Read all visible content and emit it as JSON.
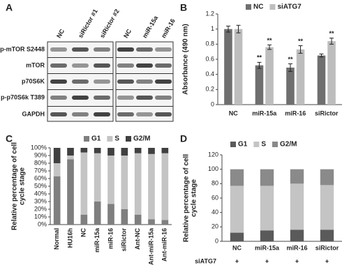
{
  "blot": {
    "panel": "A",
    "lanes": [
      "NC",
      "siRictor #1",
      "siRictor #2",
      "NC",
      "miR-15a",
      "miR-16"
    ],
    "rows": [
      "p-mTOR S2448",
      "mTOR",
      "p70S6K",
      "p-p70S6k T389",
      "GAPDH"
    ]
  },
  "chart_data": [
    {
      "type": "bar",
      "panel": "B",
      "ylabel": [
        "Absorbance (490 nm)"
      ],
      "categories": [
        "NC",
        "miR-15a",
        "miR-16",
        "siRictor"
      ],
      "series": [
        {
          "name": "NC",
          "color": "#6f6f6f",
          "values": [
            1,
            0.52,
            0.49,
            0.65
          ],
          "errors": [
            0.04,
            0.04,
            0.05,
            0.02
          ],
          "stars": [
            null,
            "**",
            "**",
            null
          ]
        },
        {
          "name": "siATG7",
          "color": "#bdbdbd",
          "values": [
            1,
            0.76,
            0.73,
            0.84
          ],
          "errors": [
            0.05,
            0.03,
            0.05,
            0.04
          ],
          "stars": [
            null,
            "**",
            "**",
            "**"
          ]
        }
      ],
      "ylim": [
        0,
        1.2
      ],
      "yticks": [
        0,
        0.2,
        0.4,
        0.6,
        0.8,
        1,
        1.2
      ]
    },
    {
      "type": "stacked_bar",
      "panel": "C",
      "ylabel": [
        "Relative percentage of cell",
        "cycle stage"
      ],
      "categories": [
        "Normal",
        "HU16h",
        "NC",
        "miR-15a",
        "miR-16",
        "siRictor",
        "Ant-NC",
        "Ant-miR-15a",
        "Ant-miR-16"
      ],
      "series": [
        {
          "name": "G1",
          "color": "#7f7f7f",
          "values": [
            63,
            85,
            13,
            30,
            27,
            20,
            13,
            7,
            6
          ]
        },
        {
          "name": "S",
          "color": "#c4c4c4",
          "values": [
            17,
            5,
            81,
            63,
            63,
            70,
            80,
            85,
            87
          ]
        },
        {
          "name": "G2/M",
          "color": "#404040",
          "values": [
            20,
            10,
            6,
            7,
            10,
            10,
            7,
            8,
            7
          ]
        }
      ],
      "ylim": [
        0,
        100
      ],
      "yticks": [
        {
          "value": 0,
          "label": "0%"
        },
        {
          "value": 10,
          "label": "10%"
        },
        {
          "value": 20,
          "label": "20%"
        },
        {
          "value": 30,
          "label": "30%"
        },
        {
          "value": 40,
          "label": "40%"
        },
        {
          "value": 50,
          "label": "50%"
        },
        {
          "value": 60,
          "label": "60%"
        },
        {
          "value": 70,
          "label": "70%"
        },
        {
          "value": 80,
          "label": "80%"
        },
        {
          "value": 90,
          "label": "90%"
        },
        {
          "value": 100,
          "label": "100%"
        }
      ]
    },
    {
      "type": "stacked_bar",
      "panel": "D",
      "ylabel": [
        "Relative percentage of cell",
        "cycle stage"
      ],
      "categories": [
        "NC",
        "miR-15a",
        "miR-16",
        "siRictor"
      ],
      "condition": {
        "label": "siATG7",
        "marks": [
          "+",
          "+",
          "+",
          "+"
        ]
      },
      "series": [
        {
          "name": "G1",
          "color": "#5a5a5a",
          "values": [
            12,
            15,
            16,
            16
          ]
        },
        {
          "name": "S",
          "color": "#c4c4c4",
          "values": [
            65,
            62,
            64,
            62
          ]
        },
        {
          "name": "G2/M",
          "color": "#8a8a8a",
          "values": [
            23,
            23,
            20,
            22
          ]
        }
      ],
      "ylim": [
        0,
        120
      ],
      "yticks": [
        0,
        20,
        40,
        60,
        80,
        100,
        120
      ]
    }
  ]
}
